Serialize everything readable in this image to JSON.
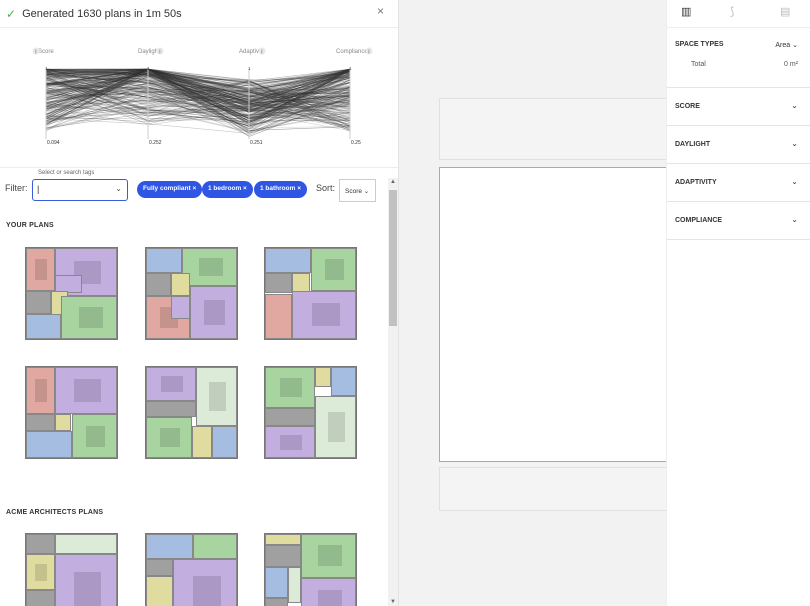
{
  "header": {
    "status": "Generated 1630 plans in 1m 50s",
    "check_icon": "check-icon",
    "close_icon": "close-icon"
  },
  "chart_data": {
    "type": "parallel-coordinates",
    "axes": [
      {
        "name": "Score",
        "max": "1",
        "min": "0.094"
      },
      {
        "name": "Daylight",
        "max": "1",
        "min": "0.252"
      },
      {
        "name": "Adaptivity",
        "max": "1",
        "min": "0.251"
      },
      {
        "name": "Compliance",
        "max": "1",
        "min": "0.25"
      }
    ],
    "line_count": 1630,
    "line_color": "#333333",
    "grid": false
  },
  "filter": {
    "label": "Filter:",
    "hint": "Select or search tags",
    "value": "|",
    "tags": [
      {
        "label": "Fully compliant"
      },
      {
        "label": "1 bedroom"
      },
      {
        "label": "1 bathroom"
      }
    ]
  },
  "sort": {
    "label": "Sort:",
    "value": "Score"
  },
  "sections": {
    "your_plans": "YOUR PLANS",
    "acme_plans": "ACME ARCHITECTS PLANS"
  },
  "right": {
    "tabs": [
      "chart-icon",
      "route-icon",
      "document-icon"
    ],
    "space_types": {
      "title": "SPACE TYPES",
      "mode": "Area",
      "total_label": "Total",
      "total_value": "0 m²"
    },
    "accordions": [
      "SCORE",
      "DAYLIGHT",
      "ADAPTIVITY",
      "COMPLIANCE"
    ]
  },
  "colors": {
    "accent": "#2f55e4",
    "bedroom": "#c3aee0",
    "living": "#a8d4a0",
    "kitchen": "#e0a8a0",
    "bath": "#a4bde0",
    "hall": "#a0a0a0",
    "storage": "#e0dca0"
  }
}
